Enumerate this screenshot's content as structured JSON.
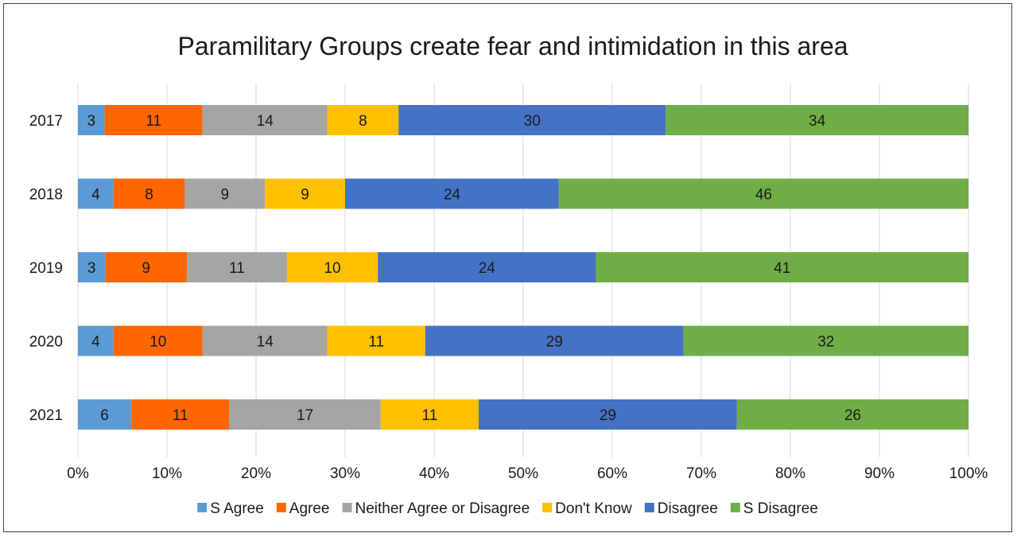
{
  "chart_data": {
    "type": "bar",
    "orientation": "horizontal",
    "stacked": "100%",
    "title": "Paramilitary Groups create fear and intimidation in this area",
    "categories": [
      "2017",
      "2018",
      "2019",
      "2020",
      "2021"
    ],
    "series": [
      {
        "name": "S Agree",
        "color": "#5B9BD5",
        "values": [
          3,
          4,
          3,
          4,
          6
        ]
      },
      {
        "name": "Agree",
        "color": "#FF6600",
        "values": [
          11,
          8,
          9,
          10,
          11
        ]
      },
      {
        "name": "Neither Agree or Disagree",
        "color": "#A5A5A5",
        "values": [
          14,
          9,
          11,
          14,
          17
        ]
      },
      {
        "name": "Don't Know",
        "color": "#FFC000",
        "values": [
          8,
          9,
          10,
          11,
          11
        ]
      },
      {
        "name": "Disagree",
        "color": "#4472C4",
        "values": [
          30,
          24,
          24,
          29,
          29
        ]
      },
      {
        "name": "S Disagree",
        "color": "#70AD47",
        "values": [
          34,
          46,
          41,
          32,
          26
        ]
      }
    ],
    "xticks": [
      "0%",
      "10%",
      "20%",
      "30%",
      "40%",
      "50%",
      "60%",
      "70%",
      "80%",
      "90%",
      "100%"
    ],
    "xlim": [
      0,
      100
    ],
    "grid": true,
    "legend": "bottom"
  }
}
